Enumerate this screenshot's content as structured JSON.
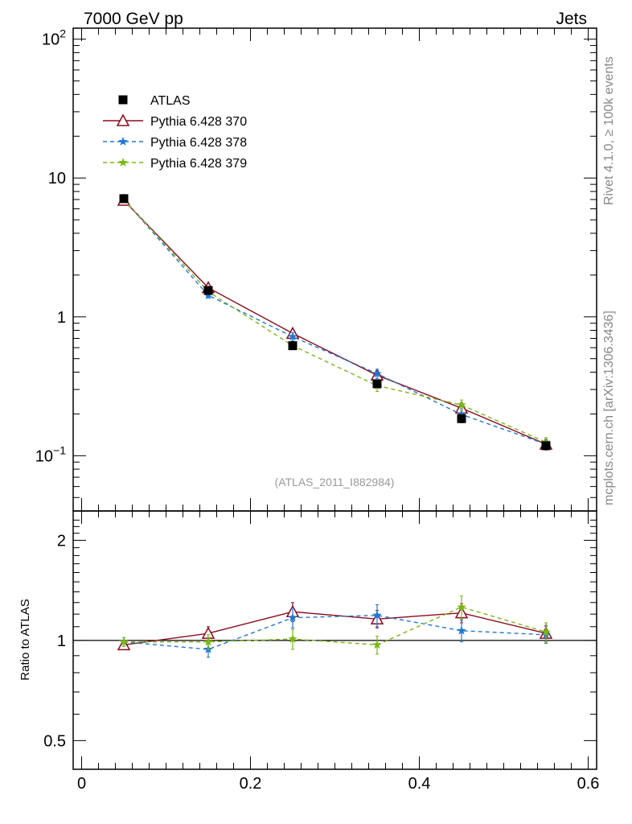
{
  "header": {
    "left": "7000 GeV pp",
    "right": "Jets"
  },
  "side_labels": {
    "rivet": "Rivet 4.1.0, ≥ 100k events",
    "mcplots": "mcplots.cern.ch [arXiv:1306.3436]"
  },
  "analysis_label": "(ATLAS_2011_I882984)",
  "colors": {
    "atlas": "#000000",
    "p370": "#8b0a1e",
    "p378": "#1f78d4",
    "p379": "#7ab814"
  },
  "chart_data": [
    {
      "type": "line",
      "panel": "main",
      "yscale": "log",
      "xlim": [
        -0.01,
        0.61
      ],
      "ylim": [
        0.04,
        120
      ],
      "yticks": [
        {
          "value": 100,
          "base": "10",
          "exp": "2"
        },
        {
          "value": 10,
          "label": "10"
        },
        {
          "value": 1,
          "label": "1"
        },
        {
          "value": 0.1,
          "base": "10",
          "exp": "−1"
        }
      ],
      "legend_position": "top-left",
      "x": [
        0.05,
        0.15,
        0.25,
        0.35,
        0.45,
        0.55
      ],
      "series": [
        {
          "name": "ATLAS",
          "key": "atlas",
          "marker": "square",
          "values": [
            7.1,
            1.55,
            0.62,
            0.33,
            0.185,
            0.118
          ],
          "errors": [
            0.3,
            0.06,
            0.03,
            0.02,
            0.012,
            0.008
          ]
        },
        {
          "name": "Pythia 6.428 370",
          "key": "p370",
          "marker": "triangle",
          "line": "solid",
          "values": [
            6.9,
            1.62,
            0.76,
            0.38,
            0.22,
            0.121
          ],
          "errors": [
            0.15,
            0.06,
            0.05,
            0.03,
            0.02,
            0.01
          ]
        },
        {
          "name": "Pythia 6.428 378",
          "key": "p378",
          "marker": "star",
          "line": "dashed",
          "values": [
            7.0,
            1.43,
            0.72,
            0.39,
            0.198,
            0.121
          ],
          "errors": [
            0.15,
            0.06,
            0.05,
            0.03,
            0.02,
            0.01
          ]
        },
        {
          "name": "Pythia 6.428 379",
          "key": "p379",
          "marker": "star",
          "line": "dashed",
          "values": [
            7.0,
            1.52,
            0.62,
            0.32,
            0.232,
            0.125
          ],
          "errors": [
            0.15,
            0.06,
            0.04,
            0.03,
            0.02,
            0.01
          ]
        }
      ]
    },
    {
      "type": "line",
      "panel": "ratio",
      "ylabel": "Ratio to ATLAS",
      "yscale": "log",
      "xlim": [
        -0.01,
        0.61
      ],
      "ylim": [
        0.41,
        2.45
      ],
      "yticks": [
        2,
        1,
        0.5
      ],
      "ytick_labels": [
        "2",
        "1",
        "0.5"
      ],
      "xticks": [
        0,
        0.2,
        0.4,
        0.6
      ],
      "xtick_labels": [
        "0",
        "0.2",
        "0.4",
        "0.6"
      ],
      "reference": 1,
      "x": [
        0.05,
        0.15,
        0.25,
        0.35,
        0.45,
        0.55
      ],
      "series": [
        {
          "name": "Pythia 6.428 370",
          "key": "p370",
          "marker": "triangle",
          "line": "solid",
          "values": [
            0.97,
            1.05,
            1.22,
            1.16,
            1.21,
            1.05
          ],
          "errors": [
            0.03,
            0.05,
            0.08,
            0.07,
            0.08,
            0.06
          ]
        },
        {
          "name": "Pythia 6.428 378",
          "key": "p378",
          "marker": "star",
          "line": "dashed",
          "values": [
            0.99,
            0.94,
            1.17,
            1.19,
            1.07,
            1.04
          ],
          "errors": [
            0.03,
            0.05,
            0.08,
            0.09,
            0.08,
            0.06
          ]
        },
        {
          "name": "Pythia 6.428 379",
          "key": "p379",
          "marker": "star",
          "line": "dashed",
          "values": [
            0.99,
            0.99,
            1.01,
            0.97,
            1.26,
            1.06
          ],
          "errors": [
            0.03,
            0.05,
            0.07,
            0.06,
            0.1,
            0.07
          ]
        }
      ]
    }
  ]
}
